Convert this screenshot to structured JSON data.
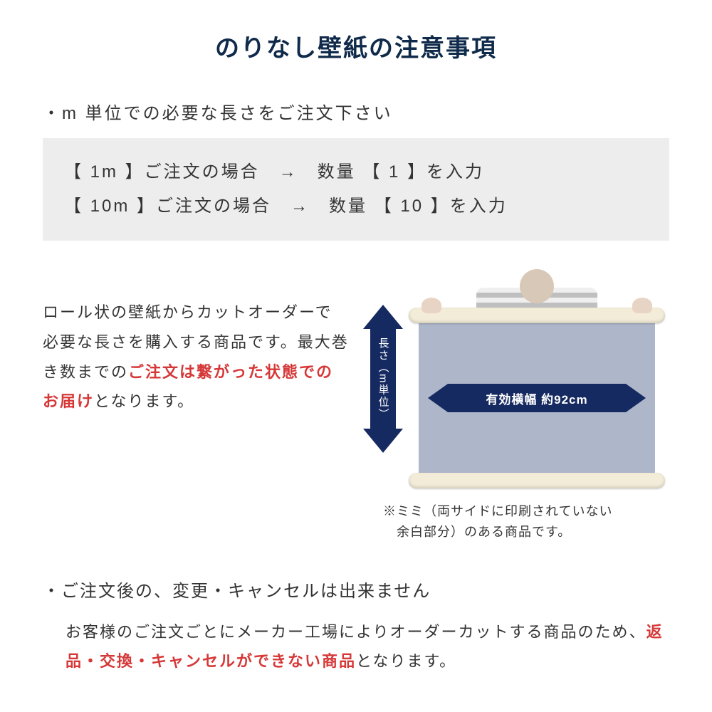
{
  "colors": {
    "title": "#0f2a4a",
    "text": "#333333",
    "highlight": "#d63838",
    "arrow": "#162a62",
    "example_bg": "#ededed",
    "sheet": "#aeb6ca",
    "roll": "#f3ecd8"
  },
  "title": "のりなし壁紙の注意事項",
  "section1": {
    "heading": "・m 単位での必要な長さをご注文下さい",
    "rows": [
      "【 1m 】ご注文の場合　→　数量 【 1 】を入力",
      "【 10m 】ご注文の場合　→　数量 【 10 】を入力"
    ]
  },
  "description": {
    "part1": "ロール状の壁紙からカットオーダーで必要な長さを購入する商品です。最大巻き数までの",
    "highlight": "ご注文は繋がった状態でのお届け",
    "part2": "となります。"
  },
  "illustration": {
    "vertical_label": "長さ（m単位）",
    "horizontal_label": "有効横幅 約92cm",
    "mimi_line1": "※ミミ（両サイドに印刷されていない",
    "mimi_line2": "　余白部分）のある商品です。"
  },
  "section2": {
    "heading": "・ご注文後の、変更・キャンセルは出来ません",
    "part1": "お客様のご注文ごとにメーカー工場によりオーダーカットする商品のため、",
    "highlight": "返品・交換・キャンセルができない商品",
    "part2": "となります。"
  }
}
